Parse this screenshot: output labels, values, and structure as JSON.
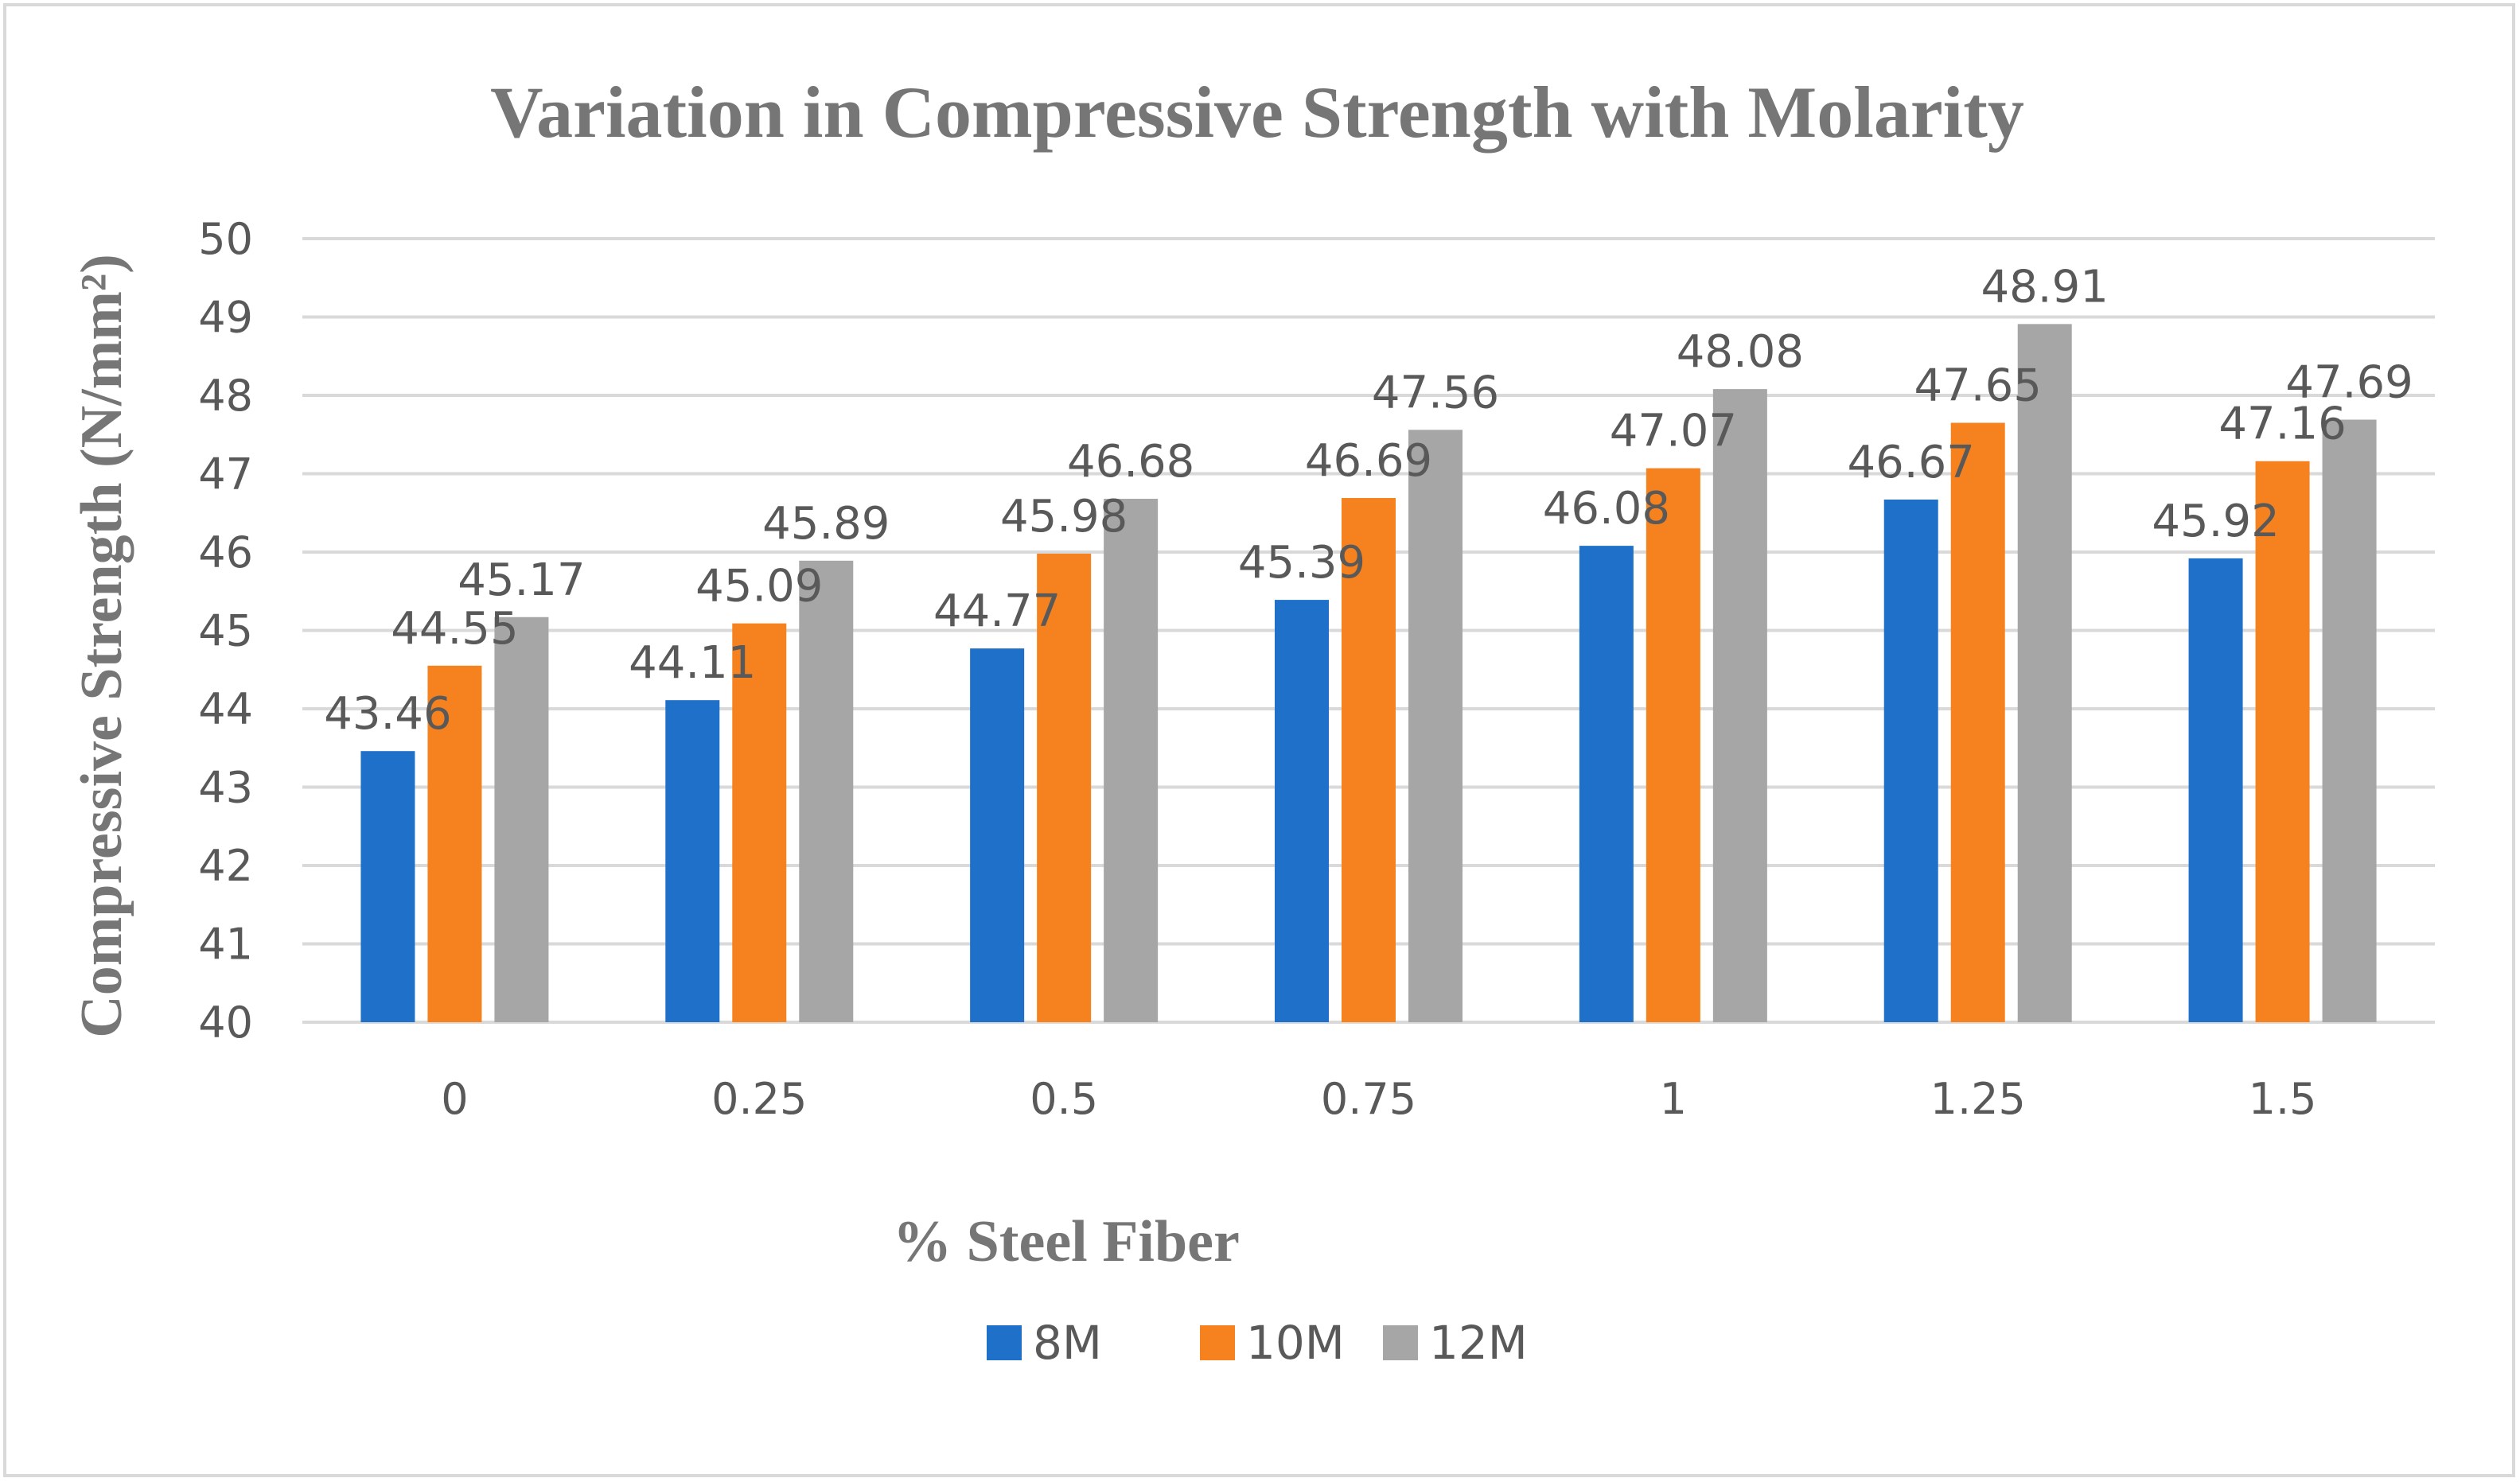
{
  "chart_data": {
    "type": "bar",
    "title": "Variation in Compressive Strength with Molarity",
    "xlabel": "% Steel Fiber",
    "ylabel": "Compressive Strength (N/mm²)",
    "categories": [
      "0",
      "0.25",
      "0.5",
      "0.75",
      "1",
      "1.25",
      "1.5"
    ],
    "series": [
      {
        "name": "8M",
        "color": "#1f70c8",
        "values": [
          43.46,
          44.11,
          44.77,
          45.39,
          46.08,
          46.67,
          45.92
        ]
      },
      {
        "name": "10M",
        "color": "#f6821f",
        "values": [
          44.55,
          45.09,
          45.98,
          46.69,
          47.07,
          47.65,
          47.16
        ]
      },
      {
        "name": "12M",
        "color": "#a6a6a6",
        "values": [
          45.17,
          45.89,
          46.68,
          47.56,
          48.08,
          48.91,
          47.69
        ]
      }
    ],
    "ylim": [
      40,
      50
    ],
    "yticks": [
      40,
      41,
      42,
      43,
      44,
      45,
      46,
      47,
      48,
      49,
      50
    ],
    "grid": true,
    "legend": "bottom-center"
  }
}
